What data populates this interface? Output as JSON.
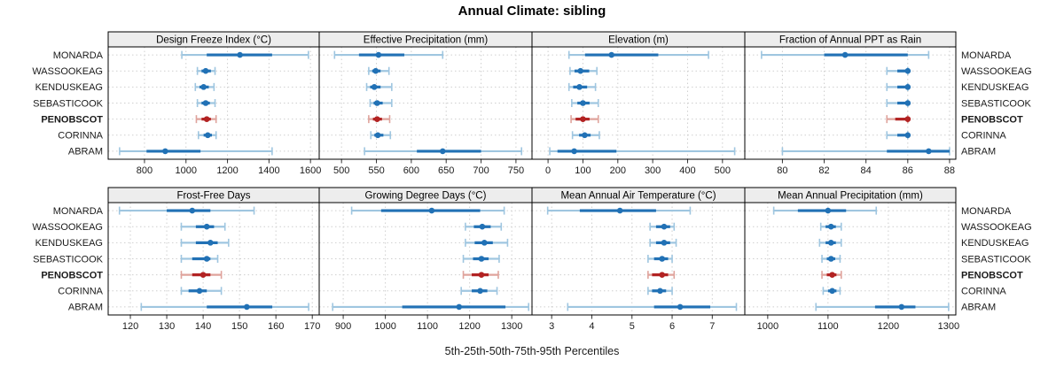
{
  "title": "Annual Climate: sibling",
  "xlabel": "5th-25th-50th-75th-95th Percentiles",
  "sites": [
    "MONARDA",
    "WASSOOKEAG",
    "KENDUSKEAG",
    "SEBASTICOOK",
    "PENOBSCOT",
    "CORINNA",
    "ABRAM"
  ],
  "highlight_site": "PENOBSCOT",
  "colors": {
    "series_dark": "#2171b5",
    "series_light": "#9fc6e0",
    "highlight_dark": "#b22222",
    "highlight_light": "#dfa39c",
    "strip_bg": "#ededed",
    "grid": "#cfcfcf",
    "border": "#000000",
    "tick": "#333333",
    "text": "#1a1a1a"
  },
  "chart_data": {
    "type": "dotplot",
    "title": "Annual Climate: sibling",
    "xlabel": "5th-25th-50th-75th-95th Percentiles",
    "categories": [
      "MONARDA",
      "WASSOOKEAG",
      "KENDUSKEAG",
      "SEBASTICOOK",
      "PENOBSCOT",
      "CORINNA",
      "ABRAM"
    ],
    "highlight": "PENOBSCOT",
    "percentiles": [
      "5th",
      "25th",
      "50th",
      "75th",
      "95th"
    ],
    "grid": "dotted",
    "legend": "none",
    "panels": [
      {
        "title": "Design Freeze Index (°C)",
        "row": 0,
        "col": 0,
        "ticks": [
          800,
          1000,
          1200,
          1400,
          1600
        ],
        "xlim": [
          625,
          1642
        ],
        "values": {
          "MONARDA": [
            980,
            1100,
            1260,
            1415,
            1590
          ],
          "WASSOOKEAG": [
            1055,
            1075,
            1095,
            1120,
            1140
          ],
          "KENDUSKEAG": [
            1045,
            1065,
            1085,
            1110,
            1135
          ],
          "SEBASTICOOK": [
            1055,
            1075,
            1095,
            1115,
            1140
          ],
          "PENOBSCOT": [
            1050,
            1075,
            1100,
            1120,
            1145
          ],
          "CORINNA": [
            1060,
            1085,
            1105,
            1125,
            1145
          ],
          "ABRAM": [
            680,
            810,
            900,
            1070,
            1415
          ]
        }
      },
      {
        "title": "Effective Precipitation (mm)",
        "row": 0,
        "col": 1,
        "ticks": [
          500,
          550,
          600,
          650,
          700,
          750
        ],
        "xlim": [
          468,
          773
        ],
        "values": {
          "MONARDA": [
            490,
            525,
            553,
            590,
            645
          ],
          "WASSOOKEAG": [
            539,
            544,
            549,
            556,
            568
          ],
          "KENDUSKEAG": [
            536,
            541,
            547,
            556,
            572
          ],
          "SEBASTICOOK": [
            541,
            546,
            551,
            559,
            572
          ],
          "PENOBSCOT": [
            539,
            545,
            551,
            558,
            569
          ],
          "CORINNA": [
            542,
            547,
            552,
            560,
            570
          ],
          "ABRAM": [
            533,
            608,
            645,
            700,
            758
          ]
        }
      },
      {
        "title": "Elevation (m)",
        "row": 0,
        "col": 2,
        "ticks": [
          0,
          100,
          200,
          300,
          400,
          500
        ],
        "xlim": [
          -46,
          564
        ],
        "values": {
          "MONARDA": [
            60,
            106,
            182,
            316,
            460
          ],
          "WASSOOKEAG": [
            63,
            76,
            93,
            118,
            140
          ],
          "KENDUSKEAG": [
            60,
            72,
            90,
            112,
            136
          ],
          "SEBASTICOOK": [
            68,
            84,
            100,
            119,
            144
          ],
          "PENOBSCOT": [
            66,
            79,
            100,
            119,
            144
          ],
          "CORINNA": [
            70,
            89,
            105,
            122,
            147
          ],
          "ABRAM": [
            5,
            27,
            75,
            196,
            535
          ]
        }
      },
      {
        "title": "Fraction of Annual PPT as Rain",
        "row": 0,
        "col": 3,
        "ticks": [
          80,
          82,
          84,
          86,
          88
        ],
        "xlim": [
          78.2,
          88.3
        ],
        "values": {
          "MONARDA": [
            79,
            82,
            83,
            86,
            87
          ],
          "WASSOOKEAG": [
            85,
            85.5,
            86,
            86,
            86
          ],
          "KENDUSKEAG": [
            85,
            85.5,
            86,
            86,
            86
          ],
          "SEBASTICOOK": [
            85,
            85.5,
            86,
            86,
            86
          ],
          "PENOBSCOT": [
            85,
            85.4,
            86,
            86,
            86
          ],
          "CORINNA": [
            85,
            85.5,
            86,
            86,
            86
          ],
          "ABRAM": [
            80,
            85,
            87,
            88,
            88
          ]
        }
      },
      {
        "title": "Frost-Free Days",
        "row": 1,
        "col": 0,
        "ticks": [
          120,
          130,
          140,
          150,
          160,
          170
        ],
        "xlim": [
          113.9,
          171.9
        ],
        "values": {
          "MONARDA": [
            117,
            130,
            137,
            142,
            154
          ],
          "WASSOOKEAG": [
            134,
            138,
            141,
            143,
            146
          ],
          "KENDUSKEAG": [
            134,
            138,
            142,
            144,
            147
          ],
          "SEBASTICOOK": [
            134,
            137,
            141,
            142,
            144
          ],
          "PENOBSCOT": [
            134,
            137,
            140,
            142,
            145
          ],
          "CORINNA": [
            134,
            136,
            139,
            141,
            145
          ],
          "ABRAM": [
            123,
            141,
            152,
            159,
            169
          ]
        }
      },
      {
        "title": "Growing Degree Days (°C)",
        "row": 1,
        "col": 1,
        "ticks": [
          900,
          1000,
          1100,
          1200,
          1300
        ],
        "xlim": [
          843,
          1348
        ],
        "values": {
          "MONARDA": [
            920,
            990,
            1110,
            1225,
            1282
          ],
          "WASSOOKEAG": [
            1190,
            1210,
            1230,
            1250,
            1275
          ],
          "KENDUSKEAG": [
            1190,
            1212,
            1235,
            1255,
            1290
          ],
          "SEBASTICOOK": [
            1185,
            1208,
            1228,
            1245,
            1270
          ],
          "PENOBSCOT": [
            1185,
            1205,
            1228,
            1245,
            1268
          ],
          "CORINNA": [
            1180,
            1205,
            1225,
            1242,
            1265
          ],
          "ABRAM": [
            875,
            1040,
            1175,
            1285,
            1340
          ]
        }
      },
      {
        "title": "Mean Annual Air Temperature (°C)",
        "row": 1,
        "col": 2,
        "ticks": [
          3,
          4,
          5,
          6,
          7
        ],
        "xlim": [
          2.51,
          7.81
        ],
        "values": {
          "MONARDA": [
            2.9,
            3.7,
            4.7,
            5.6,
            6.45
          ],
          "WASSOOKEAG": [
            5.45,
            5.6,
            5.8,
            5.95,
            6.05
          ],
          "KENDUSKEAG": [
            5.45,
            5.6,
            5.8,
            5.95,
            6.1
          ],
          "SEBASTICOOK": [
            5.4,
            5.55,
            5.75,
            5.9,
            6.0
          ],
          "PENOBSCOT": [
            5.4,
            5.5,
            5.75,
            5.9,
            6.05
          ],
          "CORINNA": [
            5.4,
            5.5,
            5.7,
            5.85,
            6.0
          ],
          "ABRAM": [
            3.4,
            5.55,
            6.2,
            6.95,
            7.6
          ]
        }
      },
      {
        "title": "Mean Annual Precipitation (mm)",
        "row": 1,
        "col": 3,
        "ticks": [
          1000,
          1100,
          1200,
          1300
        ],
        "xlim": [
          962,
          1312
        ],
        "values": {
          "MONARDA": [
            1010,
            1050,
            1100,
            1130,
            1180
          ],
          "WASSOOKEAG": [
            1088,
            1096,
            1105,
            1113,
            1122
          ],
          "KENDUSKEAG": [
            1086,
            1096,
            1105,
            1113,
            1122
          ],
          "SEBASTICOOK": [
            1090,
            1098,
            1105,
            1112,
            1120
          ],
          "PENOBSCOT": [
            1090,
            1098,
            1107,
            1114,
            1122
          ],
          "CORINNA": [
            1092,
            1100,
            1107,
            1114,
            1120
          ],
          "ABRAM": [
            1080,
            1178,
            1222,
            1245,
            1300
          ]
        }
      }
    ]
  }
}
